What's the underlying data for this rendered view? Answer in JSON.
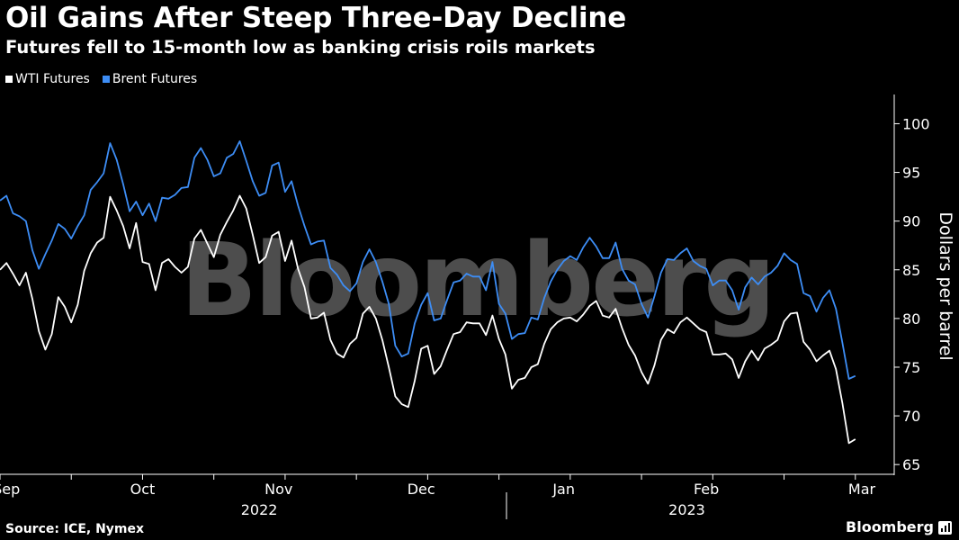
{
  "header": {
    "title": "Oil Gains After Steep Three-Day Decline",
    "subtitle": "Futures fell to 15-month low as banking crisis roils markets"
  },
  "legend": {
    "items": [
      {
        "label": "WTI Futures",
        "color": "#ffffff"
      },
      {
        "label": "Brent Futures",
        "color": "#3d8df5"
      }
    ]
  },
  "watermark": "Bloomberg",
  "footer": {
    "source": "Source: ICE, Nymex",
    "brand": "Bloomberg",
    "brand_icon": "bar-chart-icon"
  },
  "chart_data": {
    "type": "line",
    "ylabel": "Dollars per barrel",
    "ylim": [
      64,
      103
    ],
    "yticks": [
      65,
      70,
      75,
      80,
      85,
      90,
      95,
      100
    ],
    "y_axis_position": "right",
    "grid": false,
    "legend_position": "top-left",
    "x_range_trading_day": [
      0,
      138
    ],
    "month_labels": [
      {
        "label": "Sep",
        "trading_day": 1
      },
      {
        "label": "Oct",
        "trading_day": 22
      },
      {
        "label": "Nov",
        "trading_day": 43
      },
      {
        "label": "Dec",
        "trading_day": 65
      },
      {
        "label": "Jan",
        "trading_day": 87
      },
      {
        "label": "Feb",
        "trading_day": 109
      },
      {
        "label": "Mar",
        "trading_day": 133
      }
    ],
    "year_labels": [
      {
        "label": "2022",
        "trading_day": 40
      },
      {
        "label": "2023",
        "trading_day": 106
      }
    ],
    "series": [
      {
        "name": "WTI Futures",
        "color": "#ffffff",
        "values": [
          85.0,
          85.7,
          84.6,
          83.4,
          84.7,
          82.0,
          78.7,
          76.8,
          78.4,
          82.2,
          81.2,
          79.6,
          81.4,
          84.9,
          86.7,
          87.8,
          88.3,
          92.5,
          91.1,
          89.5,
          87.2,
          89.8,
          85.8,
          85.6,
          82.9,
          85.7,
          86.1,
          85.3,
          84.7,
          85.3,
          88.2,
          89.1,
          87.7,
          86.3,
          88.6,
          89.9,
          91.1,
          92.6,
          91.3,
          88.6,
          85.7,
          86.3,
          88.5,
          88.9,
          85.9,
          88.0,
          85.1,
          83.2,
          80.0,
          80.1,
          80.6,
          77.8,
          76.4,
          76.0,
          77.4,
          78.0,
          80.5,
          81.2,
          80.0,
          77.8,
          75.0,
          72.0,
          71.2,
          70.9,
          73.6,
          76.9,
          77.2,
          74.3,
          75.1,
          76.8,
          78.4,
          78.6,
          79.6,
          79.5,
          79.5,
          78.3,
          80.3,
          77.9,
          76.3,
          72.8,
          73.7,
          73.9,
          75.0,
          75.3,
          77.4,
          78.9,
          79.6,
          80.0,
          80.1,
          79.7,
          80.4,
          81.3,
          81.8,
          80.3,
          80.1,
          81.0,
          79.0,
          77.3,
          76.2,
          74.5,
          73.3,
          75.2,
          77.8,
          78.9,
          78.5,
          79.6,
          80.1,
          79.5,
          78.9,
          78.6,
          76.3,
          76.3,
          76.4,
          75.8,
          73.9,
          75.6,
          76.7,
          75.7,
          76.9,
          77.3,
          77.8,
          79.7,
          80.5,
          80.6,
          77.6,
          76.8,
          75.6,
          76.2,
          76.7,
          74.8,
          71.3,
          67.2,
          67.6
        ]
      },
      {
        "name": "Brent Futures",
        "color": "#3d8df5",
        "values": [
          92.1,
          92.6,
          90.8,
          90.5,
          90.0,
          87.0,
          85.1,
          86.6,
          88.0,
          89.7,
          89.2,
          88.2,
          89.5,
          90.6,
          93.2,
          94.0,
          94.9,
          98.0,
          96.3,
          93.8,
          91.0,
          92.0,
          90.6,
          91.8,
          90.0,
          92.4,
          92.3,
          92.7,
          93.4,
          93.5,
          96.5,
          97.5,
          96.3,
          94.6,
          94.9,
          96.5,
          96.9,
          98.2,
          96.2,
          94.1,
          92.6,
          92.9,
          95.7,
          96.0,
          93.0,
          94.1,
          91.6,
          89.5,
          87.6,
          87.9,
          88.0,
          85.2,
          84.5,
          83.4,
          82.8,
          83.6,
          85.8,
          87.1,
          85.8,
          83.8,
          81.5,
          77.2,
          76.1,
          76.4,
          79.5,
          81.4,
          82.6,
          79.8,
          80.0,
          81.9,
          83.7,
          83.9,
          84.6,
          84.3,
          84.3,
          82.9,
          85.8,
          81.5,
          80.5,
          77.9,
          78.4,
          78.5,
          80.1,
          79.9,
          82.1,
          83.8,
          85.0,
          85.9,
          86.4,
          86.0,
          87.3,
          88.3,
          87.4,
          86.2,
          86.2,
          87.8,
          85.1,
          83.9,
          83.5,
          81.5,
          80.1,
          82.3,
          84.7,
          86.1,
          86.0,
          86.7,
          87.2,
          85.9,
          85.4,
          85.1,
          83.4,
          83.9,
          83.9,
          82.9,
          80.9,
          83.2,
          84.2,
          83.5,
          84.3,
          84.7,
          85.4,
          86.7,
          86.0,
          85.6,
          82.6,
          82.3,
          80.7,
          82.1,
          82.9,
          81.0,
          77.5,
          73.8,
          74.1
        ]
      }
    ]
  }
}
